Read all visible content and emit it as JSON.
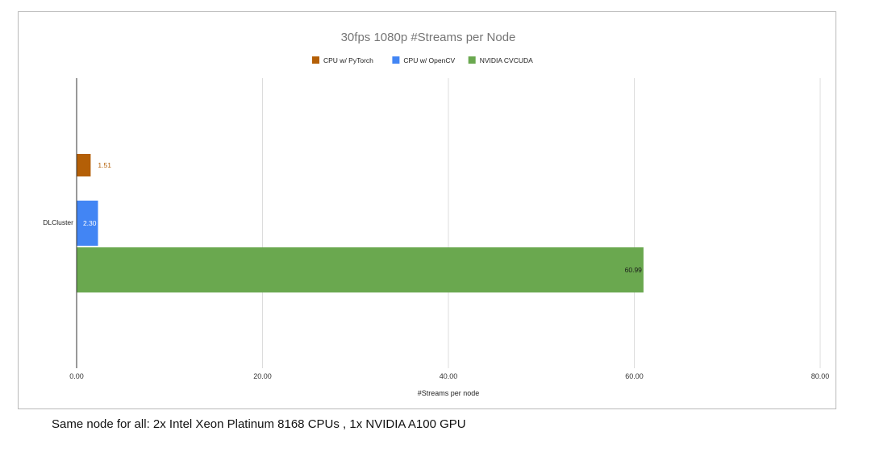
{
  "chart_data": {
    "type": "bar",
    "orientation": "horizontal",
    "title": "30fps 1080p #Streams per Node",
    "xlabel": "#Streams per node",
    "ylabel": "",
    "categories": [
      "DLCluster"
    ],
    "series": [
      {
        "name": "CPU w/ PyTorch",
        "values": [
          1.51
        ],
        "value_labels": [
          "1.51"
        ],
        "color": "#b45f06",
        "label_color": "#b45f06",
        "label_position": "outside"
      },
      {
        "name": "CPU w/ OpenCV",
        "values": [
          2.3
        ],
        "value_labels": [
          "2.30"
        ],
        "color": "#4285f4",
        "label_color": "#ffffff",
        "label_position": "inside"
      },
      {
        "name": "NVIDIA CVCUDA",
        "values": [
          60.99
        ],
        "value_labels": [
          "60.99"
        ],
        "color": "#6aa84f",
        "label_color": "#1a1a1a",
        "label_position": "inside"
      }
    ],
    "xlim": [
      0,
      80
    ],
    "x_ticks": [
      0,
      20,
      40,
      60,
      80
    ],
    "x_tick_labels": [
      "0.00",
      "20.00",
      "40.00",
      "60.00",
      "80.00"
    ],
    "grid": true,
    "legend_position": "top"
  },
  "caption": "Same node for all: 2x Intel Xeon Platinum 8168 CPUs , 1x NVIDIA A100 GPU"
}
